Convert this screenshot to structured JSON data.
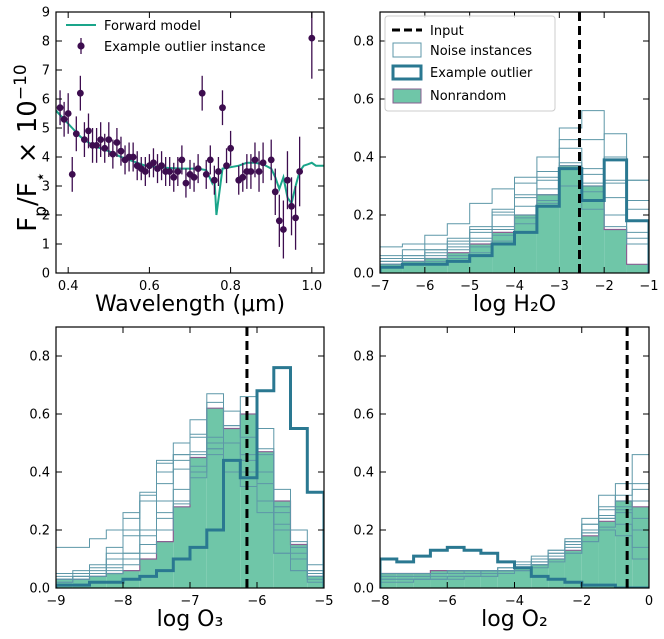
{
  "colors": {
    "forward_model": "#1aa58a",
    "outlier_points": "#3d0d4f",
    "noise_line": "#5d97a8",
    "example_outlier": "#2a7891",
    "nonrandom_fill": "#6fc6a8",
    "nonrandom_edge": "#8a5f92",
    "input_line": "#000000"
  },
  "chart_data": [
    {
      "type": "scatter",
      "title": "",
      "xlabel": "Wavelength (μm)",
      "ylabel": "F_p/F_* × 10^-10",
      "xlim": [
        0.37,
        1.03
      ],
      "ylim": [
        0,
        9
      ],
      "xticks": [
        "0.4",
        "0.6",
        "0.8",
        "1.0"
      ],
      "yticks": [
        "0",
        "1",
        "2",
        "3",
        "4",
        "5",
        "6",
        "7",
        "8",
        "9"
      ],
      "legend": [
        "Forward model",
        "Example outlier instance"
      ],
      "legend_position": "top-left",
      "series": [
        {
          "name": "Forward model",
          "kind": "line",
          "x": [
            0.37,
            0.39,
            0.41,
            0.43,
            0.45,
            0.47,
            0.5,
            0.53,
            0.56,
            0.59,
            0.62,
            0.65,
            0.68,
            0.7,
            0.72,
            0.74,
            0.755,
            0.76,
            0.765,
            0.78,
            0.8,
            0.82,
            0.84,
            0.86,
            0.88,
            0.9,
            0.91,
            0.92,
            0.93,
            0.94,
            0.95,
            0.96,
            0.97,
            0.98,
            0.99,
            1.0,
            1.01,
            1.03
          ],
          "y": [
            5.6,
            5.3,
            5.0,
            4.7,
            4.5,
            4.35,
            4.2,
            4.0,
            3.85,
            3.7,
            3.65,
            3.62,
            3.6,
            3.6,
            3.6,
            3.55,
            3.1,
            3.3,
            2.0,
            3.6,
            3.65,
            3.7,
            3.8,
            3.8,
            3.75,
            3.6,
            3.3,
            2.9,
            3.3,
            2.6,
            2.4,
            3.0,
            3.5,
            3.7,
            3.75,
            3.8,
            3.7,
            3.7
          ]
        },
        {
          "name": "Example outlier instance",
          "kind": "errorbar",
          "x": [
            0.38,
            0.39,
            0.4,
            0.41,
            0.42,
            0.43,
            0.44,
            0.45,
            0.46,
            0.47,
            0.48,
            0.49,
            0.5,
            0.51,
            0.52,
            0.53,
            0.54,
            0.55,
            0.56,
            0.57,
            0.58,
            0.59,
            0.6,
            0.61,
            0.62,
            0.63,
            0.64,
            0.65,
            0.66,
            0.67,
            0.68,
            0.69,
            0.7,
            0.71,
            0.72,
            0.73,
            0.74,
            0.75,
            0.76,
            0.77,
            0.78,
            0.79,
            0.8,
            0.82,
            0.83,
            0.84,
            0.85,
            0.86,
            0.87,
            0.88,
            0.9,
            0.91,
            0.92,
            0.93,
            0.94,
            0.95,
            0.96,
            0.97,
            1.0
          ],
          "y": [
            5.7,
            5.3,
            5.5,
            3.4,
            4.8,
            6.2,
            4.6,
            4.9,
            4.4,
            4.4,
            4.6,
            4.3,
            4.6,
            4.1,
            4.5,
            4.2,
            3.9,
            4.0,
            4.0,
            3.7,
            3.6,
            3.5,
            3.7,
            3.8,
            3.6,
            3.7,
            3.5,
            3.5,
            3.3,
            3.5,
            3.9,
            3.1,
            3.4,
            3.3,
            3.6,
            6.2,
            3.4,
            3.9,
            3.2,
            3.5,
            5.7,
            3.7,
            4.3,
            3.2,
            3.3,
            3.5,
            3.5,
            3.9,
            3.5,
            3.8,
            3.9,
            2.8,
            1.8,
            1.5,
            3.2,
            2.3,
            1.9,
            3.5,
            8.1
          ],
          "yerr": [
            0.6,
            0.6,
            0.7,
            0.6,
            0.6,
            0.6,
            0.6,
            0.6,
            0.6,
            0.6,
            0.6,
            0.5,
            0.6,
            0.5,
            0.5,
            0.5,
            0.5,
            0.5,
            0.5,
            0.5,
            0.4,
            0.5,
            0.4,
            0.5,
            0.5,
            0.5,
            0.5,
            0.5,
            0.5,
            0.5,
            0.5,
            0.5,
            0.5,
            0.5,
            0.5,
            0.6,
            0.5,
            0.5,
            0.5,
            0.5,
            0.6,
            0.6,
            0.6,
            0.5,
            0.5,
            0.6,
            0.6,
            0.6,
            0.7,
            0.7,
            0.7,
            0.8,
            0.9,
            1.0,
            1.0,
            1.0,
            1.1,
            1.2,
            1.4
          ]
        }
      ]
    },
    {
      "type": "histogram",
      "xlabel": "log H₂O",
      "xlim": [
        -7,
        -1
      ],
      "ylim": [
        0,
        0.9
      ],
      "bin_edges": [
        -7.0,
        -6.5,
        -6.0,
        -5.5,
        -5.0,
        -4.5,
        -4.0,
        -3.5,
        -3.0,
        -2.5,
        -2.0,
        -1.5,
        -1.0
      ],
      "xticks": [
        "−7",
        "−6",
        "−5",
        "−4",
        "−3",
        "−2",
        "−1"
      ],
      "yticks": [
        "0.0",
        "0.2",
        "0.4",
        "0.6",
        "0.8"
      ],
      "input": -2.55,
      "legend": [
        "Input",
        "Noise instances",
        "Example outlier",
        "Nonrandom"
      ],
      "legend_position": "top-left",
      "nonrandom": [
        0.03,
        0.04,
        0.05,
        0.07,
        0.1,
        0.14,
        0.2,
        0.27,
        0.37,
        0.3,
        0.15,
        0.03
      ],
      "example_outlier": [
        0.02,
        0.03,
        0.03,
        0.04,
        0.06,
        0.1,
        0.14,
        0.23,
        0.36,
        0.25,
        0.39,
        0.18
      ],
      "noise_instances": [
        [
          0.06,
          0.08,
          0.1,
          0.12,
          0.16,
          0.22,
          0.31,
          0.33,
          0.5,
          0.56,
          0.2,
          0.12
        ],
        [
          0.09,
          0.1,
          0.13,
          0.17,
          0.24,
          0.29,
          0.33,
          0.4,
          0.46,
          0.46,
          0.48,
          0.32
        ],
        [
          0.05,
          0.06,
          0.08,
          0.1,
          0.14,
          0.2,
          0.26,
          0.35,
          0.43,
          0.36,
          0.4,
          0.18
        ],
        [
          0.04,
          0.05,
          0.06,
          0.08,
          0.11,
          0.16,
          0.23,
          0.29,
          0.36,
          0.28,
          0.31,
          0.25
        ],
        [
          0.03,
          0.04,
          0.05,
          0.06,
          0.09,
          0.13,
          0.19,
          0.25,
          0.36,
          0.3,
          0.26,
          0.14
        ],
        [
          0.04,
          0.05,
          0.07,
          0.09,
          0.12,
          0.15,
          0.2,
          0.24,
          0.3,
          0.22,
          0.16,
          0.1
        ],
        [
          0.03,
          0.03,
          0.04,
          0.05,
          0.07,
          0.11,
          0.17,
          0.27,
          0.37,
          0.31,
          0.32,
          0.22
        ],
        [
          0.05,
          0.06,
          0.08,
          0.11,
          0.15,
          0.21,
          0.27,
          0.32,
          0.38,
          0.34,
          0.39,
          0.32
        ]
      ]
    },
    {
      "type": "histogram",
      "xlabel": "log O₃",
      "xlim": [
        -9,
        -5
      ],
      "ylim": [
        0,
        0.9
      ],
      "bin_edges": [
        -9.0,
        -8.75,
        -8.5,
        -8.25,
        -8.0,
        -7.75,
        -7.5,
        -7.25,
        -7.0,
        -6.75,
        -6.5,
        -6.25,
        -6.0,
        -5.75,
        -5.5,
        -5.25,
        -5.0
      ],
      "xticks": [
        "−9",
        "−8",
        "−7",
        "−6",
        "−5"
      ],
      "yticks": [
        "0.0",
        "0.2",
        "0.4",
        "0.6",
        "0.8"
      ],
      "input": -6.15,
      "nonrandom": [
        0.03,
        0.03,
        0.04,
        0.05,
        0.06,
        0.1,
        0.16,
        0.28,
        0.45,
        0.62,
        0.55,
        0.6,
        0.47,
        0.3,
        0.15,
        0.04
      ],
      "example_outlier": [
        0.01,
        0.01,
        0.02,
        0.02,
        0.03,
        0.04,
        0.06,
        0.1,
        0.14,
        0.2,
        0.44,
        0.38,
        0.68,
        0.76,
        0.55,
        0.33
      ],
      "noise_instances": [
        [
          0.14,
          0.14,
          0.17,
          0.2,
          0.26,
          0.32,
          0.4,
          0.44,
          0.47,
          0.5,
          0.44,
          0.35,
          0.26,
          0.12,
          0.06,
          0.03
        ],
        [
          0.05,
          0.06,
          0.08,
          0.14,
          0.24,
          0.3,
          0.36,
          0.46,
          0.58,
          0.5,
          0.44,
          0.4,
          0.3,
          0.12,
          0.06,
          0.02
        ],
        [
          0.03,
          0.04,
          0.05,
          0.07,
          0.12,
          0.2,
          0.3,
          0.41,
          0.53,
          0.67,
          0.56,
          0.66,
          0.48,
          0.28,
          0.14,
          0.04
        ],
        [
          0.02,
          0.03,
          0.04,
          0.05,
          0.08,
          0.12,
          0.2,
          0.29,
          0.38,
          0.48,
          0.61,
          0.52,
          0.55,
          0.34,
          0.2,
          0.08
        ],
        [
          0.04,
          0.05,
          0.07,
          0.12,
          0.2,
          0.33,
          0.43,
          0.5,
          0.46,
          0.64,
          0.5,
          0.44,
          0.36,
          0.2,
          0.1,
          0.04
        ],
        [
          0.03,
          0.04,
          0.06,
          0.1,
          0.18,
          0.3,
          0.44,
          0.46,
          0.52,
          0.48,
          0.4,
          0.4,
          0.3,
          0.22,
          0.12,
          0.05
        ],
        [
          0.02,
          0.03,
          0.04,
          0.06,
          0.1,
          0.15,
          0.24,
          0.3,
          0.42,
          0.52,
          0.44,
          0.38,
          0.46,
          0.28,
          0.14,
          0.06
        ],
        [
          0.03,
          0.04,
          0.05,
          0.08,
          0.12,
          0.18,
          0.26,
          0.34,
          0.4,
          0.46,
          0.56,
          0.46,
          0.4,
          0.26,
          0.16,
          0.06
        ]
      ]
    },
    {
      "type": "histogram",
      "xlabel": "log O₂",
      "xlim": [
        -8,
        0
      ],
      "ylim": [
        0,
        0.9
      ],
      "bin_edges": [
        -8.0,
        -7.5,
        -7.0,
        -6.5,
        -6.0,
        -5.5,
        -5.0,
        -4.5,
        -4.0,
        -3.5,
        -3.0,
        -2.5,
        -2.0,
        -1.5,
        -1.0,
        -0.5,
        0.0
      ],
      "xticks": [
        "−8",
        "−6",
        "−4",
        "−2",
        "0"
      ],
      "yticks": [
        "0.0",
        "0.2",
        "0.4",
        "0.6",
        "0.8"
      ],
      "input": -0.65,
      "nonrandom": [
        0.05,
        0.05,
        0.05,
        0.06,
        0.06,
        0.06,
        0.06,
        0.06,
        0.07,
        0.08,
        0.1,
        0.13,
        0.18,
        0.23,
        0.3,
        0.28
      ],
      "example_outlier": [
        0.1,
        0.09,
        0.11,
        0.13,
        0.14,
        0.13,
        0.12,
        0.09,
        0.07,
        0.04,
        0.03,
        0.02,
        0.01,
        0.01,
        0.0,
        0.0
      ],
      "noise_instances": [
        [
          0.05,
          0.05,
          0.05,
          0.05,
          0.05,
          0.05,
          0.06,
          0.07,
          0.08,
          0.1,
          0.13,
          0.17,
          0.22,
          0.28,
          0.36,
          0.46
        ],
        [
          0.04,
          0.04,
          0.04,
          0.05,
          0.05,
          0.05,
          0.05,
          0.06,
          0.07,
          0.09,
          0.12,
          0.16,
          0.24,
          0.32,
          0.3,
          0.3
        ],
        [
          0.03,
          0.03,
          0.03,
          0.04,
          0.04,
          0.04,
          0.05,
          0.05,
          0.06,
          0.08,
          0.11,
          0.15,
          0.19,
          0.24,
          0.28,
          0.24
        ],
        [
          0.05,
          0.05,
          0.05,
          0.05,
          0.06,
          0.06,
          0.06,
          0.07,
          0.09,
          0.11,
          0.13,
          0.16,
          0.2,
          0.24,
          0.26,
          0.2
        ],
        [
          0.02,
          0.02,
          0.03,
          0.03,
          0.03,
          0.04,
          0.04,
          0.05,
          0.06,
          0.08,
          0.1,
          0.14,
          0.19,
          0.25,
          0.22,
          0.14
        ],
        [
          0.04,
          0.04,
          0.04,
          0.05,
          0.05,
          0.05,
          0.06,
          0.06,
          0.07,
          0.08,
          0.1,
          0.12,
          0.16,
          0.2,
          0.18,
          0.1
        ],
        [
          0.05,
          0.05,
          0.05,
          0.05,
          0.05,
          0.06,
          0.06,
          0.06,
          0.07,
          0.09,
          0.12,
          0.16,
          0.22,
          0.27,
          0.32,
          0.34
        ],
        [
          0.03,
          0.03,
          0.03,
          0.03,
          0.04,
          0.04,
          0.04,
          0.05,
          0.06,
          0.07,
          0.09,
          0.12,
          0.16,
          0.21,
          0.27,
          0.36
        ]
      ]
    }
  ]
}
